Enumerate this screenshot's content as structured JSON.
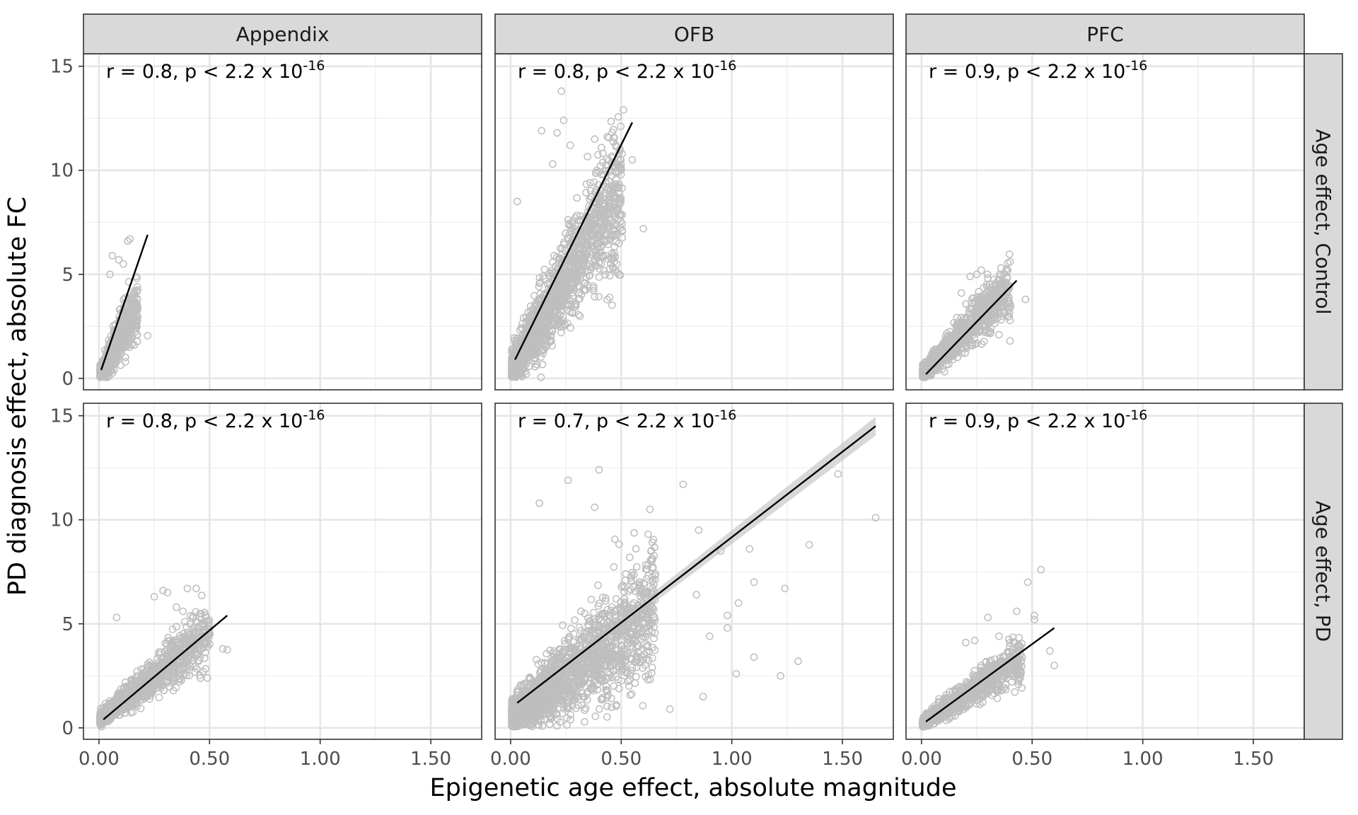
{
  "chart_data": {
    "type": "scatter",
    "xlabel": "Epigenetic age effect, absolute magnitude",
    "ylabel": "PD diagnosis effect, absolute FC",
    "xlim": [
      -0.07,
      1.73
    ],
    "ylim": [
      -0.55,
      15.6
    ],
    "x_ticks": [
      0.0,
      0.5,
      1.0,
      1.5
    ],
    "x_tick_labels": [
      "0.00",
      "0.50",
      "1.00",
      "1.50"
    ],
    "y_ticks": [
      0,
      5,
      10,
      15
    ],
    "y_tick_labels": [
      "0",
      "5",
      "10",
      "15"
    ],
    "grid": true,
    "point_color": "#bebebe",
    "line_color": "#000000",
    "band_color": "#bebebe",
    "columns": [
      "Appendix",
      "OFB",
      "PFC"
    ],
    "rows": [
      "Age effect, Control",
      "Age effect, PD"
    ],
    "panels": [
      {
        "column": "Appendix",
        "row": "Age effect, Control",
        "annotation": "r = 0.8, p < 2.2 x 10",
        "annotation_exp": "-16",
        "fit": {
          "x": [
            0.01,
            0.22
          ],
          "y": [
            0.4,
            6.9
          ]
        },
        "cloud": {
          "x_end": 0.17,
          "y_base": 0.15,
          "slope": 18.5,
          "noise": 0.7,
          "count": 700
        },
        "outliers": [
          [
            0.13,
            6.6
          ],
          [
            0.14,
            6.7
          ],
          [
            0.06,
            5.9
          ],
          [
            0.09,
            5.7
          ],
          [
            0.11,
            5.5
          ],
          [
            0.22,
            2.05
          ],
          [
            0.16,
            1.6
          ],
          [
            0.05,
            5.0
          ],
          [
            0.17,
            4.2
          ],
          [
            0.15,
            3.6
          ]
        ]
      },
      {
        "column": "OFB",
        "row": "Age effect, Control",
        "annotation": "r = 0.8, p < 2.2 x 10",
        "annotation_exp": "-16",
        "fit": {
          "x": [
            0.02,
            0.55
          ],
          "y": [
            0.9,
            12.3
          ]
        },
        "cloud": {
          "x_end": 0.5,
          "y_base": 0.3,
          "slope": 18.0,
          "noise": 1.5,
          "count": 1600
        },
        "outliers": [
          [
            0.23,
            13.8
          ],
          [
            0.51,
            12.9
          ],
          [
            0.24,
            12.4
          ],
          [
            0.14,
            11.9
          ],
          [
            0.21,
            11.8
          ],
          [
            0.38,
            11.5
          ],
          [
            0.27,
            11.2
          ],
          [
            0.55,
            10.5
          ],
          [
            0.46,
            10.6
          ],
          [
            0.6,
            7.2
          ],
          [
            0.48,
            5.5
          ],
          [
            0.03,
            8.5
          ],
          [
            0.19,
            10.3
          ]
        ]
      },
      {
        "column": "PFC",
        "row": "Age effect, Control",
        "annotation": "r = 0.9, p < 2.2 x 10",
        "annotation_exp": "-16",
        "fit": {
          "x": [
            0.02,
            0.43
          ],
          "y": [
            0.2,
            4.7
          ]
        },
        "cloud": {
          "x_end": 0.4,
          "y_base": 0.2,
          "slope": 10.5,
          "noise": 0.6,
          "count": 1000
        },
        "outliers": [
          [
            0.27,
            5.2
          ],
          [
            0.25,
            5.0
          ],
          [
            0.22,
            4.9
          ],
          [
            0.3,
            4.8
          ],
          [
            0.18,
            4.1
          ],
          [
            0.47,
            3.8
          ],
          [
            0.35,
            2.1
          ],
          [
            0.4,
            1.8
          ],
          [
            0.33,
            3.2
          ]
        ]
      },
      {
        "column": "Appendix",
        "row": "Age effect, PD",
        "annotation": "r = 0.8, p < 2.2 x 10",
        "annotation_exp": "-16",
        "fit": {
          "x": [
            0.02,
            0.58
          ],
          "y": [
            0.4,
            5.4
          ]
        },
        "cloud": {
          "x_end": 0.5,
          "y_base": 0.4,
          "slope": 8.3,
          "noise": 0.6,
          "count": 1100
        },
        "outliers": [
          [
            0.4,
            6.7
          ],
          [
            0.29,
            6.6
          ],
          [
            0.31,
            6.5
          ],
          [
            0.25,
            6.3
          ],
          [
            0.44,
            6.7
          ],
          [
            0.56,
            3.8
          ],
          [
            0.58,
            3.75
          ],
          [
            0.49,
            2.4
          ],
          [
            0.08,
            5.3
          ],
          [
            0.38,
            5.6
          ],
          [
            0.35,
            5.8
          ]
        ]
      },
      {
        "column": "OFB",
        "row": "Age effect, PD",
        "annotation": "r = 0.7, p < 2.2 x 10",
        "annotation_exp": "-16",
        "fit": {
          "x": [
            0.03,
            1.65
          ],
          "y": [
            1.2,
            14.5
          ]
        },
        "cloud": {
          "x_end": 0.65,
          "y_base": 0.5,
          "slope": 8.0,
          "noise": 1.4,
          "count": 1900
        },
        "band": true,
        "outliers": [
          [
            1.48,
            12.2
          ],
          [
            1.65,
            10.1
          ],
          [
            0.4,
            12.4
          ],
          [
            0.26,
            11.9
          ],
          [
            0.78,
            11.7
          ],
          [
            0.13,
            10.8
          ],
          [
            0.38,
            10.6
          ],
          [
            0.63,
            10.5
          ],
          [
            0.85,
            9.5
          ],
          [
            0.95,
            8.5
          ],
          [
            1.08,
            8.6
          ],
          [
            1.35,
            8.8
          ],
          [
            1.03,
            6.0
          ],
          [
            1.1,
            7.0
          ],
          [
            1.24,
            6.7
          ],
          [
            0.98,
            5.4
          ],
          [
            1.1,
            3.4
          ],
          [
            1.02,
            2.6
          ],
          [
            1.22,
            2.5
          ],
          [
            1.3,
            3.2
          ],
          [
            0.87,
            1.5
          ],
          [
            0.72,
            0.9
          ],
          [
            0.9,
            4.4
          ],
          [
            0.98,
            4.8
          ],
          [
            0.84,
            6.4
          ]
        ]
      },
      {
        "column": "PFC",
        "row": "Age effect, PD",
        "annotation": "r = 0.9, p < 2.2 x 10",
        "annotation_exp": "-16",
        "fit": {
          "x": [
            0.02,
            0.6
          ],
          "y": [
            0.3,
            4.8
          ]
        },
        "cloud": {
          "x_end": 0.45,
          "y_base": 0.2,
          "slope": 7.0,
          "noise": 0.5,
          "count": 1000
        },
        "outliers": [
          [
            0.54,
            7.6
          ],
          [
            0.48,
            7.0
          ],
          [
            0.51,
            5.4
          ],
          [
            0.51,
            5.2
          ],
          [
            0.3,
            5.3
          ],
          [
            0.43,
            5.6
          ],
          [
            0.58,
            3.7
          ],
          [
            0.6,
            3.0
          ],
          [
            0.24,
            4.2
          ],
          [
            0.2,
            4.1
          ],
          [
            0.35,
            4.4
          ]
        ]
      }
    ]
  }
}
